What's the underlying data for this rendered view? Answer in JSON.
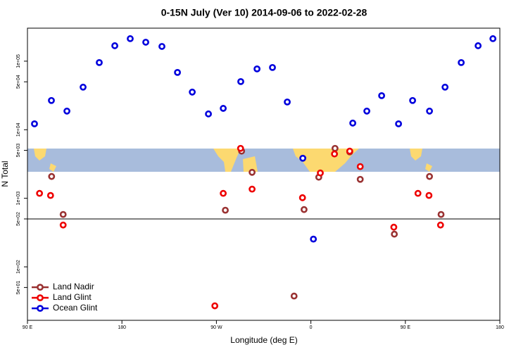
{
  "chart_data": {
    "type": "scatter",
    "title": "0-15N July (Ver 10)   2014-09-06 to 2022-02-28",
    "x_label": "Longitude (deg E)",
    "y_label": "N Total",
    "log_y": true,
    "hline": 500,
    "legend": "bottom-left",
    "xlim": [
      90,
      540
    ],
    "ylim": [
      16.6,
      303000
    ],
    "xticks": [
      {
        "value": 90,
        "label": "90 E"
      },
      180,
      {
        "value": 270,
        "label": "90 W"
      },
      {
        "value": 360,
        "label": "0"
      },
      {
        "value": 450,
        "label": "90 E"
      },
      {
        "value": 540,
        "label": "180"
      }
    ],
    "yticks": [
      {
        "value": 50,
        "label": "5e+01"
      },
      {
        "value": 100,
        "label": "1e+02"
      },
      {
        "value": 500,
        "label": "5e+02"
      },
      {
        "value": 1000,
        "label": "1e+03"
      },
      {
        "value": 5000,
        "label": "5e+03"
      },
      {
        "value": 10000,
        "label": "1e+04"
      },
      {
        "value": 50000,
        "label": "5e+04"
      },
      {
        "value": 100000,
        "label": "1e+05"
      }
    ],
    "series": [
      {
        "name": "Land Nadir",
        "color": "#9a3232",
        "x": [
          113,
          124,
          278.5,
          294,
          304,
          344,
          353.5,
          367.5,
          383,
          397,
          407,
          439.5,
          473,
          484
        ],
        "values": [
          2080,
          581,
          670,
          4870,
          2390,
          37.5,
          685,
          2030,
          5350,
          4750,
          1890,
          300,
          2080,
          581
        ]
      },
      {
        "name": "Land Glint",
        "color": "#ee0000",
        "x": [
          101.5,
          112,
          124,
          268.5,
          276.5,
          293,
          304,
          352,
          369,
          382.5,
          397,
          407,
          439,
          462,
          472.5,
          483.5
        ],
        "values": [
          1180,
          1100,
          407,
          27,
          1180,
          5350,
          1360,
          1020,
          2340,
          4430,
          4870,
          2900,
          379,
          1180,
          1100,
          407
        ]
      },
      {
        "name": "Ocean Glint",
        "color": "#0000dd",
        "x": [
          96.7,
          112.8,
          127.6,
          143,
          158.4,
          173.2,
          187.9,
          202.7,
          218.1,
          232.9,
          247,
          262.4,
          276.5,
          293.2,
          308.7,
          323.4,
          337.5,
          352.3,
          362.4,
          399.9,
          413.3,
          427.4,
          443.5,
          456.9,
          473,
          487.8,
          503.2,
          519.3,
          533.4
        ],
        "values": [
          12200,
          26700,
          18700,
          41800,
          95400,
          168000,
          213000,
          189000,
          164000,
          68500,
          35400,
          17000,
          20500,
          50400,
          77100,
          80900,
          25400,
          3840,
          254,
          12500,
          18700,
          31400,
          12200,
          26700,
          18700,
          41800,
          95400,
          168000,
          213000
        ]
      }
    ]
  }
}
